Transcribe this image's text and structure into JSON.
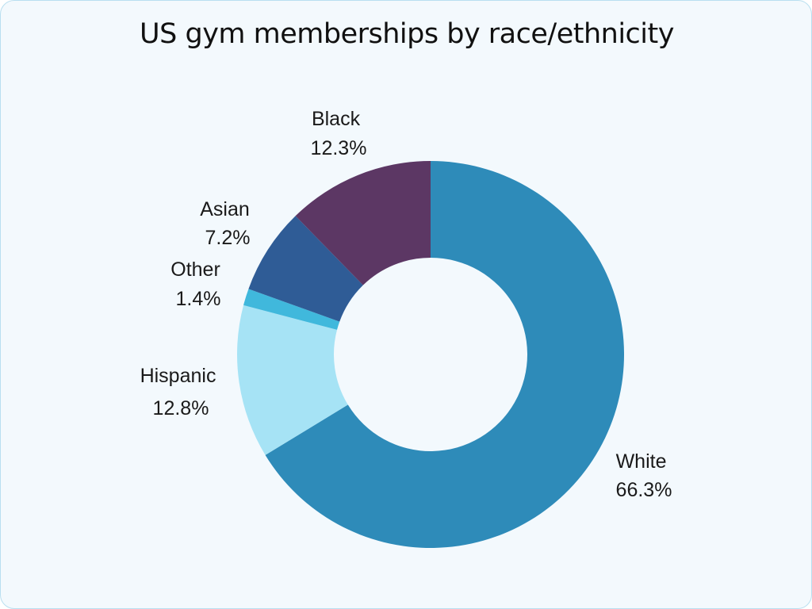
{
  "chart_data": {
    "type": "pie",
    "variant": "donut",
    "title": "US gym memberships by race/ethnicity",
    "start": "top, clockwise",
    "slices": [
      {
        "category": "White",
        "value": 66.3,
        "value_label": "66.3%",
        "color": "#2e8bb9"
      },
      {
        "category": "Hispanic",
        "value": 12.8,
        "value_label": "12.8%",
        "color": "#a6e3f5"
      },
      {
        "category": "Other",
        "value": 1.4,
        "value_label": "1.4%",
        "color": "#40b8dc"
      },
      {
        "category": "Asian",
        "value": 7.2,
        "value_label": "7.2%",
        "color": "#2f5c96"
      },
      {
        "category": "Black",
        "value": 12.3,
        "value_label": "12.3%",
        "color": "#5c3764"
      }
    ]
  }
}
